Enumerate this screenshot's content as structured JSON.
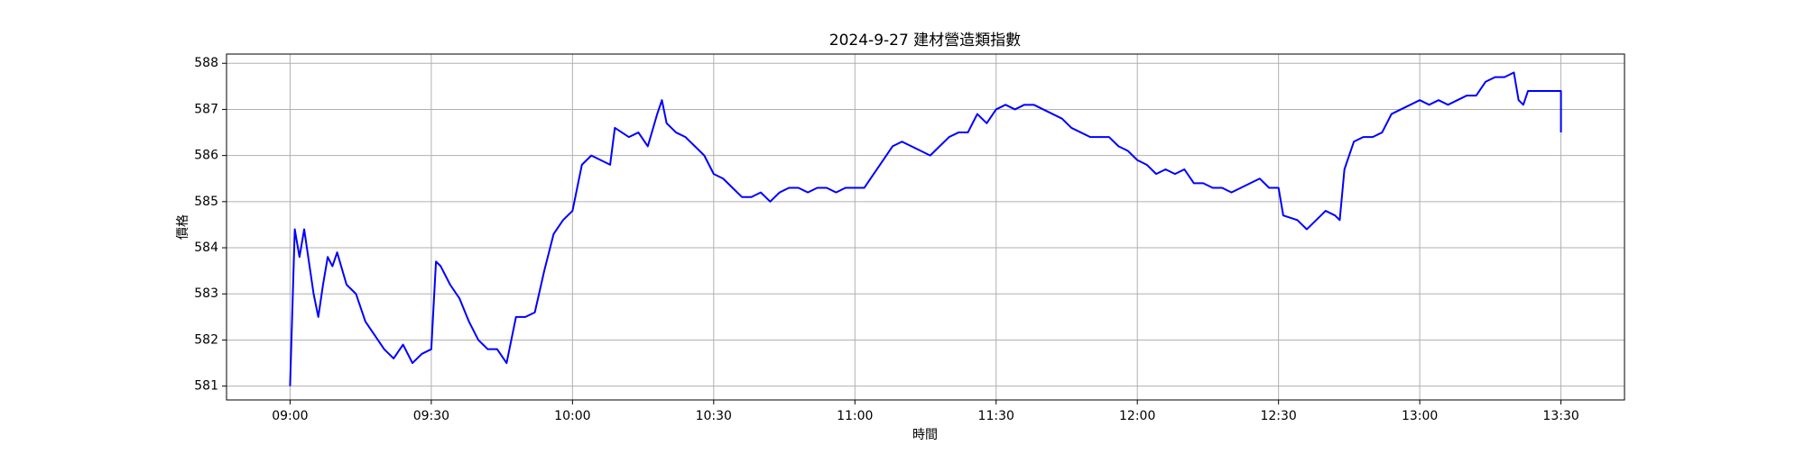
{
  "chart_data": {
    "type": "line",
    "title": "2024-9-27 建材營造類指數",
    "x_label": "時間",
    "y_label": "價格",
    "color": "#0000ff",
    "grid": true,
    "x": [
      "09:00",
      "09:01",
      "09:02",
      "09:03",
      "09:04",
      "09:05",
      "09:06",
      "09:07",
      "09:08",
      "09:09",
      "09:10",
      "09:12",
      "09:14",
      "09:16",
      "09:18",
      "09:20",
      "09:22",
      "09:24",
      "09:26",
      "09:28",
      "09:30",
      "09:31",
      "09:32",
      "09:34",
      "09:36",
      "09:38",
      "09:40",
      "09:42",
      "09:44",
      "09:46",
      "09:48",
      "09:50",
      "09:52",
      "09:54",
      "09:56",
      "09:58",
      "10:00",
      "10:02",
      "10:04",
      "10:06",
      "10:08",
      "10:09",
      "10:12",
      "10:14",
      "10:16",
      "10:18",
      "10:19",
      "10:20",
      "10:22",
      "10:24",
      "10:26",
      "10:28",
      "10:30",
      "10:32",
      "10:34",
      "10:36",
      "10:38",
      "10:40",
      "10:42",
      "10:44",
      "10:46",
      "10:48",
      "10:50",
      "10:52",
      "10:54",
      "10:56",
      "10:58",
      "11:00",
      "11:02",
      "11:04",
      "11:06",
      "11:08",
      "11:10",
      "11:12",
      "11:14",
      "11:16",
      "11:18",
      "11:20",
      "11:22",
      "11:24",
      "11:26",
      "11:28",
      "11:30",
      "11:32",
      "11:34",
      "11:36",
      "11:38",
      "11:40",
      "11:42",
      "11:44",
      "11:46",
      "11:48",
      "11:50",
      "11:52",
      "11:54",
      "11:56",
      "11:58",
      "12:00",
      "12:02",
      "12:04",
      "12:06",
      "12:08",
      "12:10",
      "12:12",
      "12:14",
      "12:16",
      "12:18",
      "12:20",
      "12:22",
      "12:24",
      "12:26",
      "12:28",
      "12:30",
      "12:31",
      "12:34",
      "12:36",
      "12:38",
      "12:40",
      "12:42",
      "12:43",
      "12:44",
      "12:46",
      "12:48",
      "12:50",
      "12:52",
      "12:54",
      "12:56",
      "12:58",
      "13:00",
      "13:02",
      "13:04",
      "13:06",
      "13:08",
      "13:10",
      "13:12",
      "13:14",
      "13:16",
      "13:18",
      "13:20",
      "13:21",
      "13:22",
      "13:23",
      "13:30",
      "13:30"
    ],
    "values": [
      581.0,
      584.4,
      583.8,
      584.4,
      583.7,
      583.0,
      582.5,
      583.2,
      583.8,
      583.6,
      583.9,
      583.2,
      583.0,
      582.4,
      582.1,
      581.8,
      581.6,
      581.9,
      581.5,
      581.7,
      581.8,
      583.7,
      583.6,
      583.2,
      582.9,
      582.4,
      582.0,
      581.8,
      581.8,
      581.5,
      582.5,
      582.5,
      582.6,
      583.5,
      584.3,
      584.6,
      584.8,
      585.8,
      586.0,
      585.9,
      585.8,
      586.6,
      586.4,
      586.5,
      586.2,
      586.9,
      587.2,
      586.7,
      586.5,
      586.4,
      586.2,
      586.0,
      585.6,
      585.5,
      585.3,
      585.1,
      585.1,
      585.2,
      585.0,
      585.2,
      585.3,
      585.3,
      585.2,
      585.3,
      585.3,
      585.2,
      585.3,
      585.3,
      585.3,
      585.6,
      585.9,
      586.2,
      586.3,
      586.2,
      586.1,
      586.0,
      586.2,
      586.4,
      586.5,
      586.5,
      586.9,
      586.7,
      587.0,
      587.1,
      587.0,
      587.1,
      587.1,
      587.0,
      586.9,
      586.8,
      586.6,
      586.5,
      586.4,
      586.4,
      586.4,
      586.2,
      586.1,
      585.9,
      585.8,
      585.6,
      585.7,
      585.6,
      585.7,
      585.4,
      585.4,
      585.3,
      585.3,
      585.2,
      585.3,
      585.4,
      585.5,
      585.3,
      585.3,
      584.7,
      584.6,
      584.4,
      584.6,
      584.8,
      584.7,
      584.6,
      585.7,
      586.3,
      586.4,
      586.4,
      586.5,
      586.9,
      587.0,
      587.1,
      587.2,
      587.1,
      587.2,
      587.1,
      587.2,
      587.3,
      587.3,
      587.6,
      587.7,
      587.7,
      587.8,
      587.2,
      587.1,
      587.4,
      587.4,
      586.5
    ],
    "xlim": [
      "08:46:30",
      "13:43:30"
    ],
    "xticks": [
      "09:00",
      "09:30",
      "10:00",
      "10:30",
      "11:00",
      "11:30",
      "12:00",
      "12:30",
      "13:00",
      "13:30"
    ],
    "ylim": [
      580.7,
      588.2
    ],
    "yticks": [
      581,
      582,
      583,
      584,
      585,
      586,
      587,
      588
    ]
  }
}
